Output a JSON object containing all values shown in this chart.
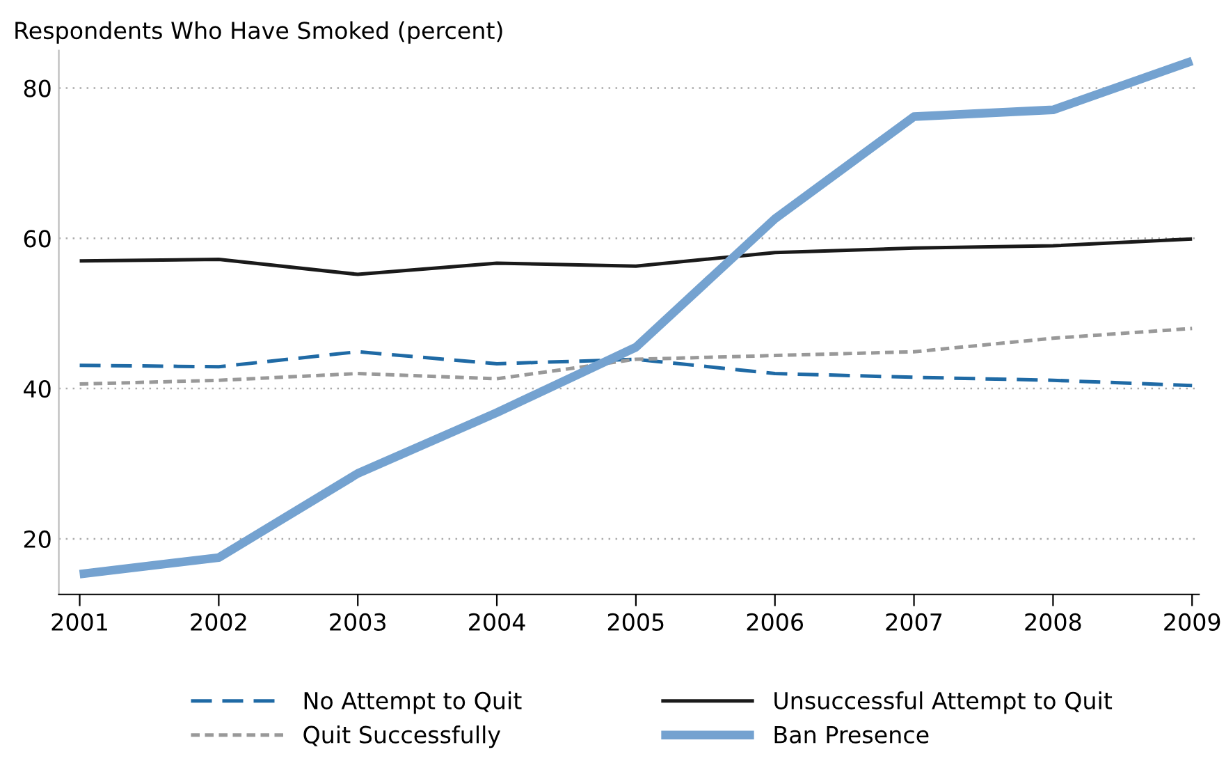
{
  "chart_data": {
    "type": "line",
    "title": "Respondents Who Have Smoked (percent)",
    "x": [
      2001,
      2002,
      2003,
      2004,
      2005,
      2006,
      2007,
      2008,
      2009
    ],
    "xlim": [
      2000.85,
      2009.05
    ],
    "xticks": [
      2001,
      2002,
      2003,
      2004,
      2005,
      2006,
      2007,
      2008,
      2009
    ],
    "ylim": [
      12.6,
      85
    ],
    "yticks": [
      20,
      40,
      60,
      80
    ],
    "grid": "y",
    "legend": "bottom",
    "marker": "none",
    "series": [
      {
        "name": "No Attempt to Quit",
        "color": "#1f6aa5",
        "line_style": "dashed",
        "values": [
          43.1,
          42.9,
          44.9,
          43.3,
          43.9,
          42.0,
          41.5,
          41.1,
          40.4
        ]
      },
      {
        "name": "Unsuccessful Attempt to Quit",
        "color": "#1a1a1a",
        "line_style": "solid",
        "values": [
          57.0,
          57.2,
          55.2,
          56.7,
          56.3,
          58.1,
          58.7,
          59.0,
          59.9
        ]
      },
      {
        "name": "Quit Successfully",
        "color": "#999999",
        "line_style": "dotted",
        "values": [
          40.6,
          41.1,
          42.0,
          41.3,
          43.9,
          44.4,
          44.9,
          46.7,
          48.0
        ]
      },
      {
        "name": "Ban Presence",
        "color": "#74a2d0",
        "line_style": "solid",
        "values": [
          15.3,
          17.5,
          28.7,
          36.8,
          45.5,
          62.6,
          76.2,
          77.1,
          83.6
        ]
      }
    ]
  }
}
